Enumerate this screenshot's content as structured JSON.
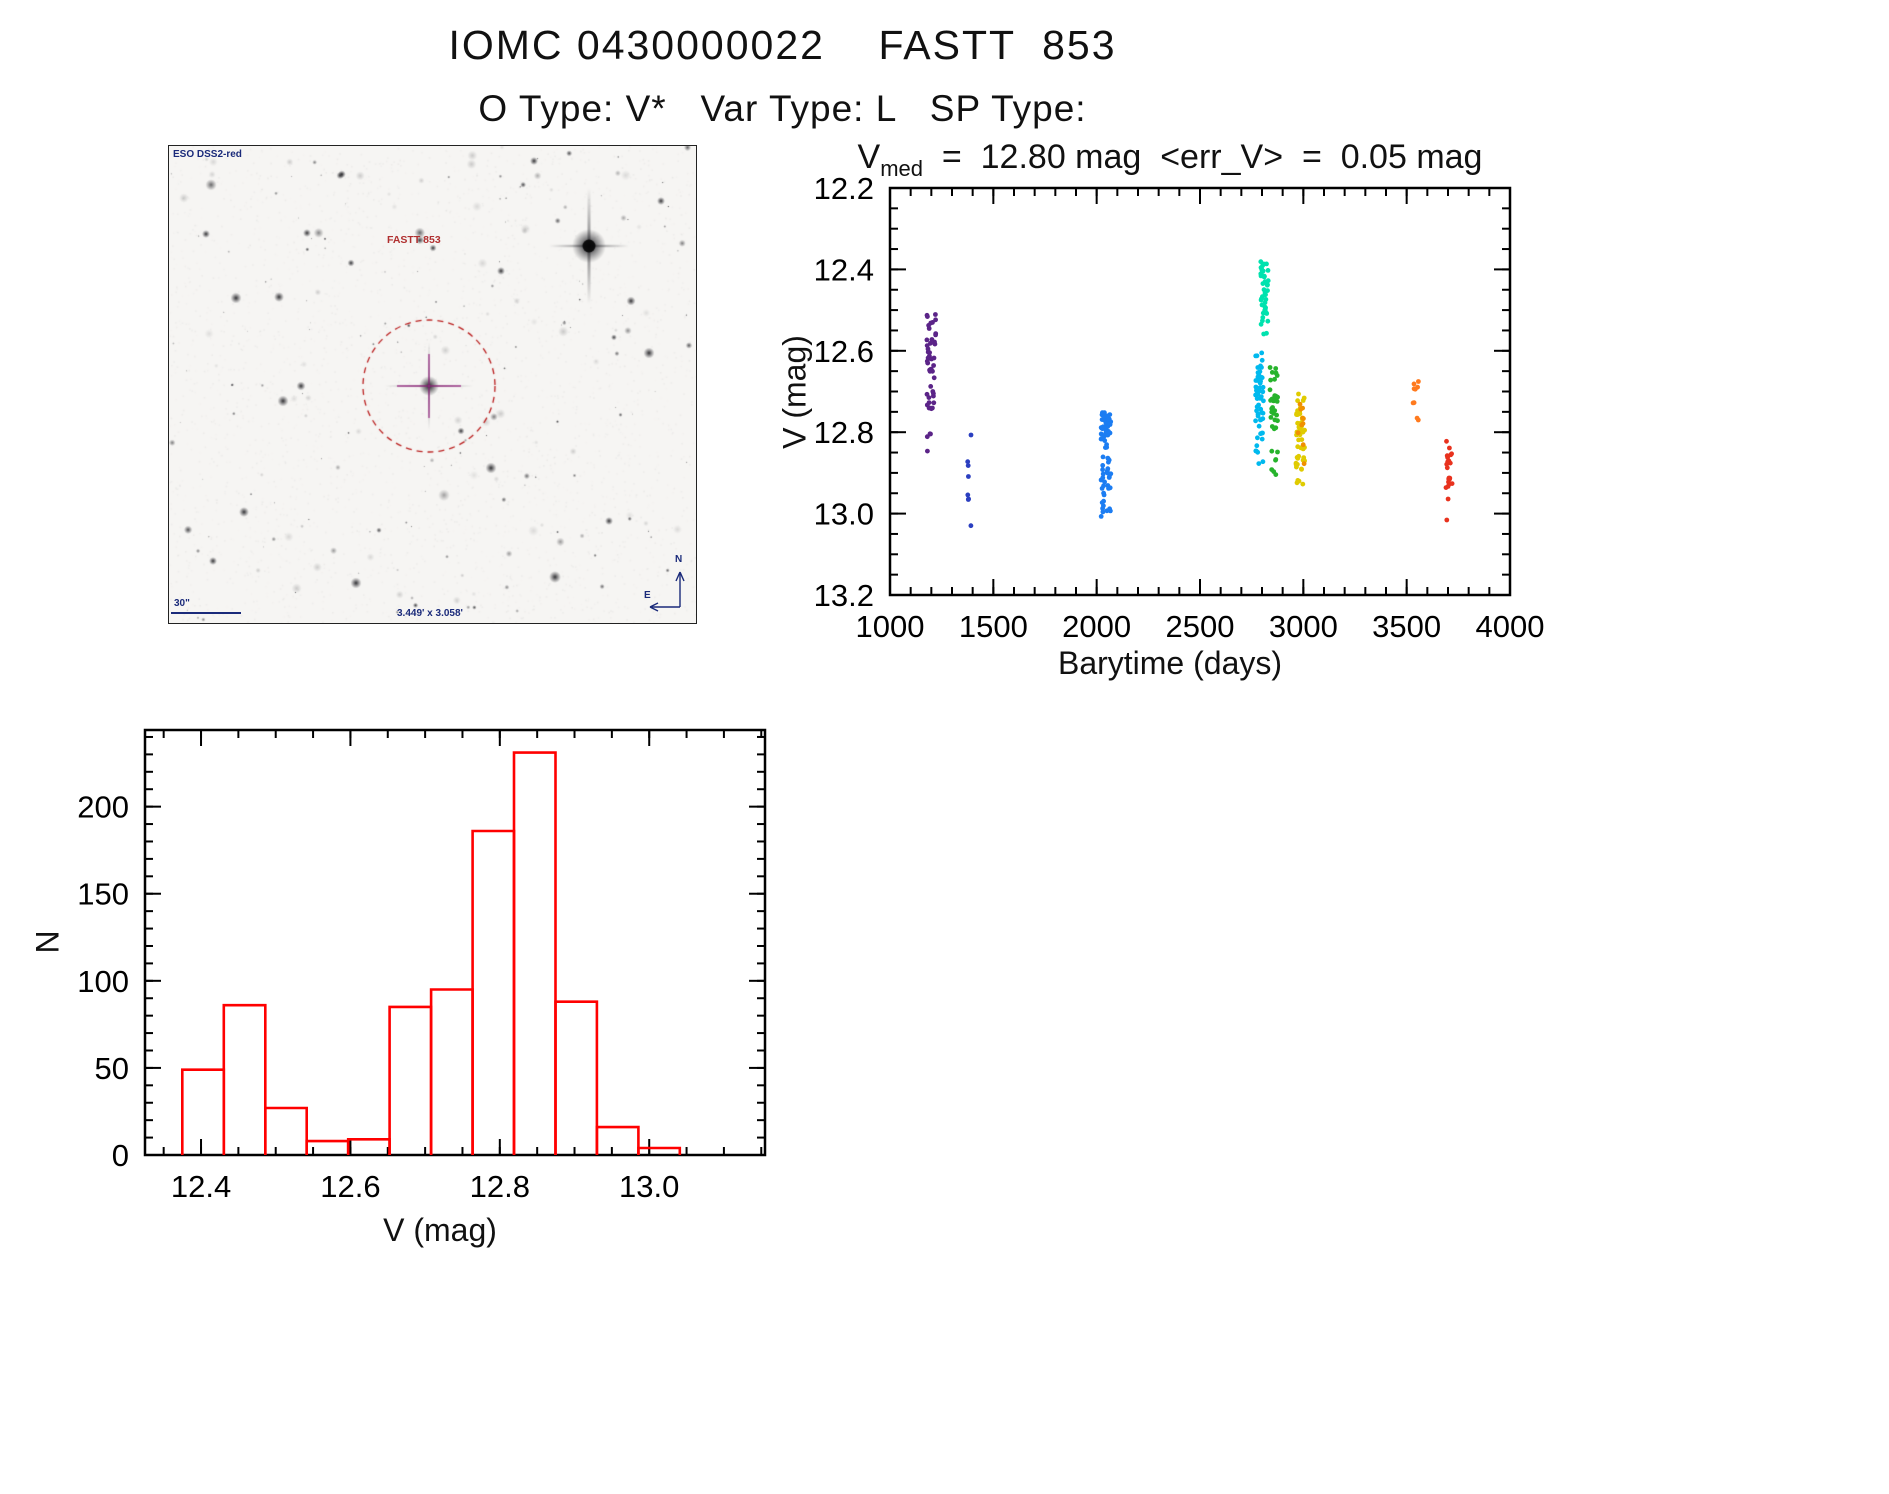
{
  "page": {
    "background": "#ffffff",
    "text_color": "#000000"
  },
  "header": {
    "title": "IOMC 0430000022    FASTT  853",
    "subtitle": "O Type: V*   Var Type: L   SP Type:"
  },
  "finder": {
    "survey_label": "ESO DSS2-red",
    "target_label": "FASTT 853",
    "scale_label": "30\"",
    "fov_label": "3.449' x 3.058'",
    "compass_n": "N",
    "compass_e": "E",
    "annotation_color": "#1a2a7a",
    "target_ring_color": "#bb2020"
  },
  "chart_data": [
    {
      "type": "scatter",
      "title_v": "V",
      "title_sub": "med",
      "title_rest": "  =  12.80 mag  <err_V>  =  0.05 mag",
      "xlabel": "Barytime (days)",
      "ylabel": "V (mag)",
      "xlim": [
        1000,
        4000
      ],
      "ylim": [
        12.2,
        13.2
      ],
      "y_inverted": true,
      "xtick_values": [
        1000,
        1500,
        2000,
        2500,
        3000,
        3500,
        4000
      ],
      "xtick_labels": [
        "1000",
        "1500",
        "2000",
        "2500",
        "3000",
        "3500",
        "4000"
      ],
      "xminor_step": 100,
      "ytick_values": [
        12.2,
        12.4,
        12.6,
        12.8,
        13.0,
        13.2
      ],
      "ytick_labels": [
        "12.2",
        "12.4",
        "12.6",
        "12.8",
        "13.0",
        "13.2"
      ],
      "yminor_step": 0.05,
      "point_radius": 2.4,
      "series": [
        {
          "name": "epoch-1",
          "color": "#5b2488",
          "x": 1200,
          "x_jitter": 22,
          "segments": [
            {
              "y0": 12.5,
              "y1": 12.58,
              "n": 12
            },
            {
              "y0": 12.57,
              "y1": 12.77,
              "n": 34
            },
            {
              "y0": 12.79,
              "y1": 12.86,
              "n": 4
            }
          ]
        },
        {
          "name": "epoch-2",
          "color": "#2b3fc0",
          "x": 1385,
          "x_jitter": 10,
          "segments": [
            {
              "y0": 12.78,
              "y1": 12.81,
              "n": 1
            },
            {
              "y0": 12.84,
              "y1": 12.91,
              "n": 3
            },
            {
              "y0": 12.93,
              "y1": 12.99,
              "n": 3
            },
            {
              "y0": 13.01,
              "y1": 13.03,
              "n": 1
            }
          ]
        },
        {
          "name": "epoch-3",
          "color": "#1c7df2",
          "x": 2045,
          "x_jitter": 24,
          "segments": [
            {
              "y0": 12.75,
              "y1": 12.83,
              "n": 42
            },
            {
              "y0": 12.83,
              "y1": 12.94,
              "n": 26
            },
            {
              "y0": 12.94,
              "y1": 13.01,
              "n": 11
            }
          ]
        },
        {
          "name": "epoch-4",
          "color": "#00b9ee",
          "x": 2788,
          "x_jitter": 20,
          "segments": [
            {
              "y0": 12.6,
              "y1": 12.73,
              "n": 32
            },
            {
              "y0": 12.73,
              "y1": 12.85,
              "n": 22
            },
            {
              "y0": 12.85,
              "y1": 12.88,
              "n": 2
            }
          ]
        },
        {
          "name": "epoch-5",
          "color": "#00e2ae",
          "x": 2812,
          "x_jitter": 18,
          "segments": [
            {
              "y0": 12.38,
              "y1": 12.47,
              "n": 28
            },
            {
              "y0": 12.47,
              "y1": 12.56,
              "n": 18
            }
          ]
        },
        {
          "name": "epoch-6",
          "color": "#27b32c",
          "x": 2858,
          "x_jitter": 20,
          "segments": [
            {
              "y0": 12.64,
              "y1": 12.73,
              "n": 17
            },
            {
              "y0": 12.73,
              "y1": 12.85,
              "n": 14
            },
            {
              "y0": 12.85,
              "y1": 12.91,
              "n": 5
            }
          ]
        },
        {
          "name": "epoch-7",
          "color": "#e0cb00",
          "x": 2985,
          "x_jitter": 22,
          "segments": [
            {
              "y0": 12.7,
              "y1": 12.8,
              "n": 22
            },
            {
              "y0": 12.79,
              "y1": 12.9,
              "n": 26
            },
            {
              "y0": 12.9,
              "y1": 12.93,
              "n": 4
            }
          ]
        },
        {
          "name": "epoch-7b",
          "color": "#f09000",
          "x": 2990,
          "x_jitter": 18,
          "segments": [
            {
              "y0": 12.73,
              "y1": 12.89,
              "n": 10
            }
          ]
        },
        {
          "name": "epoch-8",
          "color": "#ff7a1e",
          "x": 3545,
          "x_jitter": 14,
          "segments": [
            {
              "y0": 12.65,
              "y1": 12.74,
              "n": 7
            },
            {
              "y0": 12.76,
              "y1": 12.79,
              "n": 2
            }
          ]
        },
        {
          "name": "epoch-9",
          "color": "#e8321e",
          "x": 3705,
          "x_jitter": 16,
          "segments": [
            {
              "y0": 12.82,
              "y1": 12.92,
              "n": 15
            },
            {
              "y0": 12.92,
              "y1": 12.97,
              "n": 6
            },
            {
              "y0": 13.0,
              "y1": 13.02,
              "n": 1
            }
          ]
        }
      ]
    },
    {
      "type": "bar",
      "xlabel": "V (mag)",
      "ylabel": "N",
      "bin_start": 12.375,
      "bin_width": 0.0555,
      "counts": [
        49,
        86,
        27,
        8,
        9,
        85,
        95,
        186,
        231,
        88,
        16,
        4
      ],
      "xlim": [
        12.325,
        13.155
      ],
      "ylim": [
        0,
        244
      ],
      "xtick_values": [
        12.4,
        12.6,
        12.8,
        13.0
      ],
      "xtick_labels": [
        "12.4",
        "12.6",
        "12.8",
        "13.0"
      ],
      "xminor_step": 0.05,
      "ytick_values": [
        0,
        50,
        100,
        150,
        200
      ],
      "ytick_labels": [
        "0",
        "50",
        "100",
        "150",
        "200"
      ],
      "yminor_step": 10,
      "bar_color": "#ff0000"
    }
  ]
}
